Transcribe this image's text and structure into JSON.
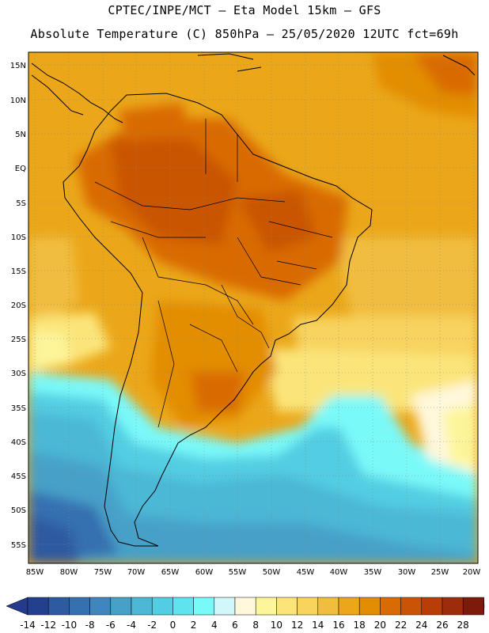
{
  "header": {
    "line1": "CPTEC/INPE/MCT –  Eta Model 15km – GFS",
    "line2": "Absolute Temperature (C) 850hPa – 25/05/2020 12UTC fct=69h"
  },
  "map": {
    "lat_labels": [
      "15N",
      "10N",
      "5N",
      "EQ",
      "5S",
      "10S",
      "15S",
      "20S",
      "25S",
      "30S",
      "35S",
      "40S",
      "45S",
      "50S",
      "55S"
    ],
    "lon_labels": [
      "85W",
      "80W",
      "75W",
      "70W",
      "65W",
      "60W",
      "55W",
      "50W",
      "45W",
      "40W",
      "35W",
      "30W",
      "25W",
      "20W"
    ]
  },
  "colorbar": {
    "labels": [
      "-14",
      "-12",
      "-10",
      "-8",
      "-6",
      "-4",
      "-2",
      "0",
      "2",
      "4",
      "6",
      "8",
      "10",
      "12",
      "14",
      "16",
      "18",
      "20",
      "22",
      "24",
      "26",
      "28"
    ],
    "colors": [
      "#23408f",
      "#2e5aa1",
      "#3570b0",
      "#3e86bd",
      "#46a0c8",
      "#4cb8d6",
      "#53cde2",
      "#5fe3ee",
      "#7af9f9",
      "#d2f7fb",
      "#fff8dc",
      "#fdf59a",
      "#fbe57a",
      "#f8d35e",
      "#f1bd3f",
      "#eba719",
      "#e38d05",
      "#d96b05",
      "#c95406",
      "#b73f07",
      "#9c2c0a",
      "#7d1a0c"
    ],
    "low_arrow_color": "#233b8a",
    "high_arrow_color": "#7a0a2e"
  }
}
